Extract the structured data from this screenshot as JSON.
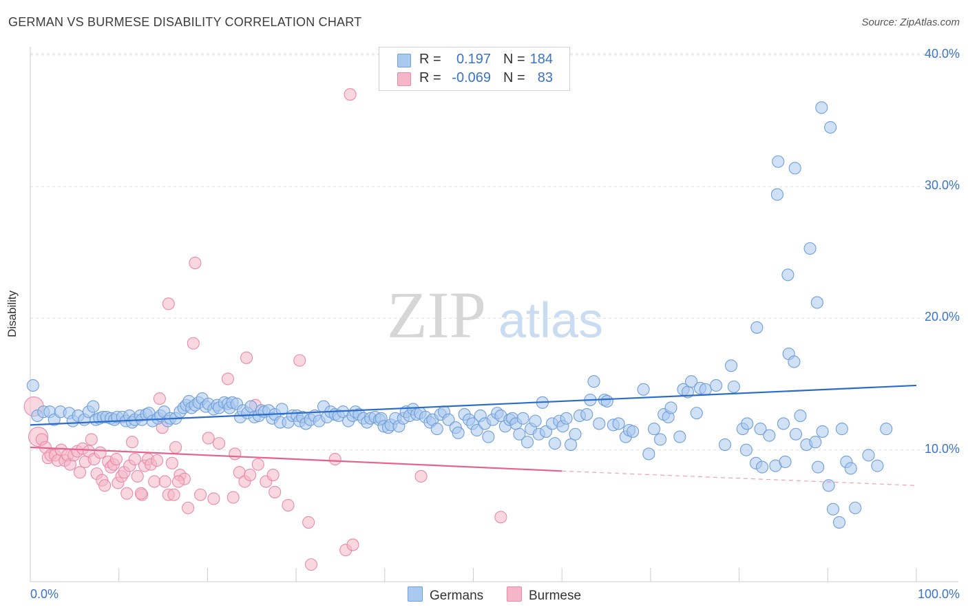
{
  "title": "GERMAN VS BURMESE DISABILITY CORRELATION CHART",
  "source": "Source: ZipAtlas.com",
  "watermark": {
    "zip": "ZIP",
    "atlas": "atlas"
  },
  "colors": {
    "german_fill": "#a9c9ef",
    "german_stroke": "#6f9ed8",
    "german_line": "#2b6cc9",
    "burmese_fill": "#f4b6c8",
    "burmese_stroke": "#e98aa8",
    "burmese_line": "#e5628e",
    "tick_text": "#3a73c7",
    "grid": "#dddddd"
  },
  "stats_legend": [
    {
      "r_label": "R =",
      "r_value": "0.197",
      "n_label": "N =",
      "n_value": "184",
      "color": "#a9c9ef",
      "border": "#6f9ed8"
    },
    {
      "r_label": "R =",
      "r_value": "-0.069",
      "n_label": "N =",
      "n_value": "83",
      "color": "#f4b6c8",
      "border": "#e98aa8"
    }
  ],
  "series_legend": [
    {
      "label": "Germans",
      "color": "#a9c9ef",
      "border": "#6f9ed8"
    },
    {
      "label": "Burmese",
      "color": "#f4b6c8",
      "border": "#e98aa8"
    }
  ],
  "chart_data": {
    "type": "scatter",
    "title": "GERMAN VS BURMESE DISABILITY CORRELATION CHART",
    "xlabel": "",
    "ylabel": "Disability",
    "xlim": [
      0,
      100
    ],
    "ylim": [
      0,
      40
    ],
    "x_tick_labels": [
      "0.0%",
      "100.0%"
    ],
    "y_ticks": [
      10,
      20,
      30,
      40
    ],
    "y_tick_labels": [
      "10.0%",
      "20.0%",
      "30.0%",
      "40.0%"
    ],
    "grid": true,
    "legend_placement": "top-center",
    "series": [
      {
        "name": "Germans",
        "trend": {
          "x": [
            0,
            100
          ],
          "y": [
            11.9,
            14.9
          ]
        },
        "points": [
          [
            0.3,
            14.9
          ],
          [
            0.8,
            12.6
          ],
          [
            1.5,
            12.9
          ],
          [
            2.2,
            12.9
          ],
          [
            2.7,
            12.3
          ],
          [
            3.4,
            12.9
          ],
          [
            4.4,
            12.8
          ],
          [
            4.8,
            12.2
          ],
          [
            5.4,
            12.6
          ],
          [
            6.1,
            12.3
          ],
          [
            6.6,
            12.9
          ],
          [
            7.1,
            13.3
          ],
          [
            7.4,
            12.3
          ],
          [
            7.8,
            12.4
          ],
          [
            8.2,
            12.5
          ],
          [
            8.6,
            12.5
          ],
          [
            9.1,
            12.4
          ],
          [
            9.5,
            12.3
          ],
          [
            9.8,
            12.5
          ],
          [
            10.4,
            12.5
          ],
          [
            10.8,
            12.2
          ],
          [
            11.2,
            12.6
          ],
          [
            11.5,
            12.1
          ],
          [
            11.8,
            12.3
          ],
          [
            12.4,
            12.6
          ],
          [
            12.6,
            12.3
          ],
          [
            13.1,
            12.7
          ],
          [
            13.4,
            12.8
          ],
          [
            13.8,
            12.2
          ],
          [
            14.4,
            12.4
          ],
          [
            14.7,
            12.6
          ],
          [
            15.1,
            12.9
          ],
          [
            15.5,
            12.2
          ],
          [
            15.8,
            12.4
          ],
          [
            16.4,
            12.4
          ],
          [
            16.9,
            12.9
          ],
          [
            17.3,
            13.2
          ],
          [
            17.6,
            13.4
          ],
          [
            17.9,
            13.7
          ],
          [
            18.2,
            13.2
          ],
          [
            18.6,
            13.4
          ],
          [
            19.0,
            13.6
          ],
          [
            19.4,
            13.9
          ],
          [
            19.8,
            13.3
          ],
          [
            20.1,
            13.5
          ],
          [
            20.7,
            13.1
          ],
          [
            21.1,
            13.4
          ],
          [
            21.3,
            13.2
          ],
          [
            21.9,
            13.6
          ],
          [
            22.3,
            13.5
          ],
          [
            22.5,
            13.2
          ],
          [
            22.8,
            13.6
          ],
          [
            23.3,
            13.5
          ],
          [
            23.7,
            12.5
          ],
          [
            24.0,
            13.0
          ],
          [
            24.5,
            12.8
          ],
          [
            24.9,
            13.3
          ],
          [
            25.3,
            12.5
          ],
          [
            25.8,
            12.6
          ],
          [
            26.1,
            13.0
          ],
          [
            26.4,
            12.9
          ],
          [
            26.9,
            13.0
          ],
          [
            27.3,
            12.4
          ],
          [
            27.6,
            12.7
          ],
          [
            28.2,
            12.1
          ],
          [
            28.4,
            13.1
          ],
          [
            29.1,
            12.1
          ],
          [
            29.6,
            12.6
          ],
          [
            30.1,
            12.6
          ],
          [
            30.4,
            12.2
          ],
          [
            30.7,
            12.5
          ],
          [
            31.1,
            12.0
          ],
          [
            31.6,
            12.3
          ],
          [
            32.1,
            12.6
          ],
          [
            32.6,
            12.2
          ],
          [
            33.1,
            13.3
          ],
          [
            33.5,
            12.5
          ],
          [
            33.9,
            12.9
          ],
          [
            34.4,
            12.7
          ],
          [
            34.8,
            12.6
          ],
          [
            35.3,
            12.9
          ],
          [
            35.9,
            12.2
          ],
          [
            36.4,
            12.6
          ],
          [
            36.7,
            12.9
          ],
          [
            37.1,
            12.7
          ],
          [
            37.6,
            12.4
          ],
          [
            38.0,
            12.1
          ],
          [
            38.4,
            12.4
          ],
          [
            38.9,
            12.5
          ],
          [
            39.4,
            12.3
          ],
          [
            39.6,
            12.4
          ],
          [
            39.9,
            11.8
          ],
          [
            40.4,
            11.7
          ],
          [
            40.7,
            11.9
          ],
          [
            41.2,
            12.4
          ],
          [
            41.6,
            11.8
          ],
          [
            42.1,
            12.4
          ],
          [
            42.4,
            12.9
          ],
          [
            42.8,
            12.6
          ],
          [
            43.2,
            13.1
          ],
          [
            43.6,
            12.7
          ],
          [
            44.0,
            12.8
          ],
          [
            44.6,
            12.5
          ],
          [
            45.1,
            12.1
          ],
          [
            45.4,
            12.3
          ],
          [
            45.9,
            11.6
          ],
          [
            46.3,
            12.7
          ],
          [
            46.7,
            12.9
          ],
          [
            47.2,
            12.3
          ],
          [
            48.0,
            11.7
          ],
          [
            48.3,
            11.3
          ],
          [
            49.0,
            12.7
          ],
          [
            49.5,
            12.3
          ],
          [
            49.9,
            12.0
          ],
          [
            50.4,
            11.5
          ],
          [
            50.8,
            12.6
          ],
          [
            51.3,
            12.0
          ],
          [
            51.7,
            11.0
          ],
          [
            52.2,
            12.3
          ],
          [
            52.7,
            12.8
          ],
          [
            53.1,
            12.6
          ],
          [
            53.6,
            11.8
          ],
          [
            54.1,
            12.3
          ],
          [
            54.4,
            12.4
          ],
          [
            54.8,
            12.0
          ],
          [
            55.2,
            11.2
          ],
          [
            55.6,
            12.4
          ],
          [
            56.1,
            10.6
          ],
          [
            56.5,
            11.6
          ],
          [
            57.0,
            12.2
          ],
          [
            57.4,
            11.2
          ],
          [
            57.8,
            13.6
          ],
          [
            58.2,
            11.4
          ],
          [
            58.9,
            12.0
          ],
          [
            59.2,
            10.5
          ],
          [
            59.7,
            12.2
          ],
          [
            60.1,
            11.8
          ],
          [
            60.5,
            12.4
          ],
          [
            61.0,
            10.4
          ],
          [
            61.5,
            11.2
          ],
          [
            62.0,
            12.6
          ],
          [
            62.8,
            12.7
          ],
          [
            63.2,
            13.8
          ],
          [
            63.6,
            15.2
          ],
          [
            64.2,
            12.0
          ],
          [
            64.8,
            13.8
          ],
          [
            65.1,
            13.7
          ],
          [
            65.8,
            11.9
          ],
          [
            66.4,
            12.0
          ],
          [
            67.2,
            11.0
          ],
          [
            67.6,
            11.5
          ],
          [
            68.0,
            11.4
          ],
          [
            69.2,
            14.6
          ],
          [
            69.8,
            9.7
          ],
          [
            70.4,
            11.6
          ],
          [
            71.1,
            10.8
          ],
          [
            71.5,
            12.7
          ],
          [
            72.0,
            12.5
          ],
          [
            72.3,
            13.2
          ],
          [
            73.3,
            11.0
          ],
          [
            73.7,
            14.6
          ],
          [
            74.2,
            14.4
          ],
          [
            74.6,
            15.2
          ],
          [
            75.2,
            12.8
          ],
          [
            75.6,
            14.7
          ],
          [
            76.2,
            14.6
          ],
          [
            77.4,
            14.9
          ],
          [
            78.4,
            10.4
          ],
          [
            79.1,
            16.4
          ],
          [
            79.4,
            14.8
          ],
          [
            80.4,
            11.6
          ],
          [
            80.8,
            10.0
          ],
          [
            80.9,
            12.0
          ],
          [
            81.9,
            9.0
          ],
          [
            82.4,
            11.6
          ],
          [
            82.6,
            8.7
          ],
          [
            83.4,
            11.1
          ],
          [
            84.1,
            8.8
          ],
          [
            85.0,
            12.0
          ],
          [
            85.2,
            9.1
          ],
          [
            85.6,
            17.3
          ],
          [
            86.4,
            11.2
          ],
          [
            86.9,
            12.6
          ],
          [
            87.6,
            10.4
          ],
          [
            88.6,
            10.6
          ],
          [
            88.9,
            8.7
          ],
          [
            89.4,
            11.4
          ],
          [
            90.1,
            7.3
          ],
          [
            90.6,
            5.5
          ],
          [
            91.3,
            4.5
          ],
          [
            91.6,
            11.6
          ],
          [
            92.1,
            9.1
          ],
          [
            92.6,
            8.6
          ],
          [
            93.1,
            5.6
          ],
          [
            94.6,
            9.6
          ],
          [
            95.6,
            8.8
          ],
          [
            96.6,
            11.6
          ],
          [
            82.0,
            19.3
          ],
          [
            86.2,
            16.7
          ],
          [
            85.5,
            23.3
          ],
          [
            88.8,
            21.2
          ],
          [
            88.0,
            25.3
          ],
          [
            84.3,
            29.4
          ],
          [
            84.4,
            31.9
          ],
          [
            86.3,
            31.4
          ],
          [
            89.3,
            36.0
          ],
          [
            90.3,
            34.5
          ]
        ]
      },
      {
        "name": "Burmese",
        "trend": {
          "x": [
            0,
            60
          ],
          "y": [
            10.2,
            8.4
          ]
        },
        "trend_dashed": {
          "x": [
            60,
            100
          ],
          "y": [
            8.4,
            7.3
          ]
        },
        "points": [
          [
            0.4,
            13.3
          ],
          [
            0.9,
            11.0
          ],
          [
            1.3,
            10.8
          ],
          [
            1.7,
            10.2
          ],
          [
            2.0,
            9.4
          ],
          [
            2.3,
            9.6
          ],
          [
            2.8,
            9.6
          ],
          [
            3.1,
            9.2
          ],
          [
            3.5,
            10.0
          ],
          [
            3.9,
            9.2
          ],
          [
            4.2,
            9.6
          ],
          [
            4.5,
            8.9
          ],
          [
            4.9,
            9.6
          ],
          [
            5.3,
            9.9
          ],
          [
            5.6,
            8.3
          ],
          [
            5.9,
            10.1
          ],
          [
            6.2,
            9.1
          ],
          [
            6.6,
            9.9
          ],
          [
            6.9,
            10.8
          ],
          [
            7.2,
            9.3
          ],
          [
            7.5,
            8.2
          ],
          [
            7.9,
            9.8
          ],
          [
            8.1,
            7.7
          ],
          [
            8.4,
            7.3
          ],
          [
            8.8,
            9.1
          ],
          [
            9.1,
            8.7
          ],
          [
            9.4,
            8.9
          ],
          [
            9.7,
            9.3
          ],
          [
            9.9,
            7.5
          ],
          [
            10.3,
            8.0
          ],
          [
            10.6,
            8.3
          ],
          [
            10.9,
            6.7
          ],
          [
            11.2,
            8.8
          ],
          [
            11.5,
            10.6
          ],
          [
            11.8,
            9.3
          ],
          [
            12.1,
            8.0
          ],
          [
            12.6,
            6.6
          ],
          [
            12.9,
            8.8
          ],
          [
            13.3,
            9.3
          ],
          [
            13.6,
            8.9
          ],
          [
            14.0,
            7.6
          ],
          [
            14.3,
            9.2
          ],
          [
            14.6,
            13.9
          ],
          [
            14.9,
            11.7
          ],
          [
            15.2,
            7.6
          ],
          [
            15.6,
            6.6
          ],
          [
            16.0,
            9.0
          ],
          [
            16.2,
            6.6
          ],
          [
            16.4,
            10.2
          ],
          [
            16.9,
            8.1
          ],
          [
            17.4,
            7.8
          ],
          [
            17.8,
            5.6
          ],
          [
            18.6,
            24.2
          ],
          [
            19.2,
            6.6
          ],
          [
            20.1,
            10.9
          ],
          [
            20.7,
            6.3
          ],
          [
            21.3,
            10.5
          ],
          [
            22.3,
            15.4
          ],
          [
            23.1,
            9.7
          ],
          [
            23.6,
            8.3
          ],
          [
            24.2,
            7.6
          ],
          [
            24.8,
            8.1
          ],
          [
            25.4,
            13.4
          ],
          [
            25.7,
            8.9
          ],
          [
            26.6,
            7.6
          ],
          [
            27.4,
            8.1
          ],
          [
            27.6,
            6.8
          ],
          [
            29.1,
            5.8
          ],
          [
            31.4,
            4.5
          ],
          [
            31.7,
            1.3
          ],
          [
            34.4,
            9.3
          ],
          [
            35.6,
            2.4
          ],
          [
            36.4,
            2.8
          ],
          [
            36.1,
            37.0
          ],
          [
            24.4,
            17.0
          ],
          [
            30.4,
            16.8
          ],
          [
            15.6,
            21.1
          ],
          [
            18.4,
            18.1
          ],
          [
            44.1,
            8.0
          ],
          [
            53.1,
            4.9
          ],
          [
            16.7,
            7.6
          ],
          [
            22.9,
            6.4
          ],
          [
            12.5,
            6.7
          ]
        ]
      }
    ]
  }
}
